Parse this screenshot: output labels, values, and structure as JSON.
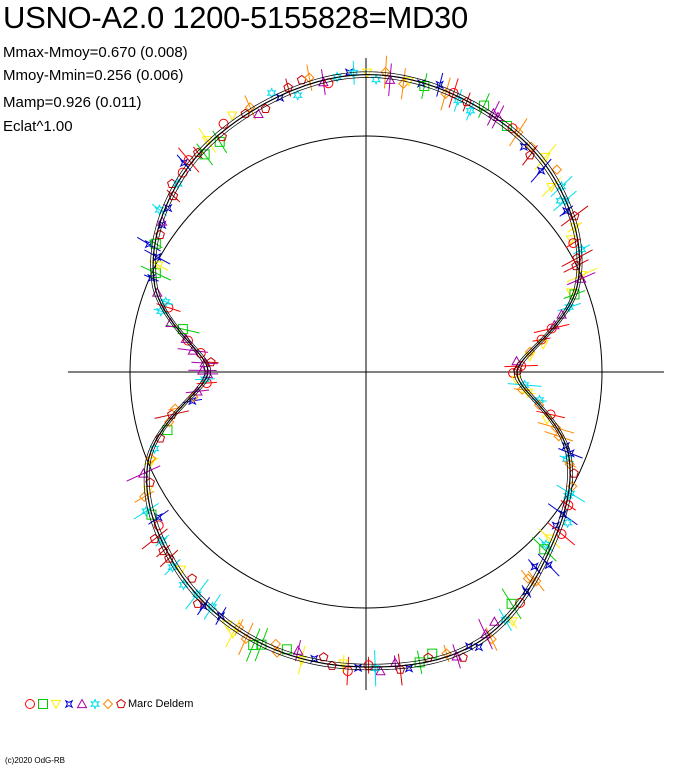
{
  "title": "USNO-A2.0 1200-5155828=MD30",
  "stats": {
    "line1": "Mmax-Mmoy=0.670 (0.008)",
    "line2": "Mmoy-Mmin=0.256 (0.006)",
    "line3": "Mamp=0.926 (0.011)",
    "line4": "Eclat^1.00"
  },
  "legend": {
    "observer": "Marc Deldem"
  },
  "footer": {
    "copyright": "(c)2020 OdG-RB"
  },
  "colors": {
    "axes": "#000000",
    "curve": "#000000",
    "series": [
      "#ff0000",
      "#00cc00",
      "#ffee00",
      "#0000cc",
      "#aa00aa",
      "#00ddee",
      "#ff8800",
      "#cc0000"
    ]
  },
  "chart_data": {
    "type": "scatter",
    "coordinate_system": "polar",
    "description_type": "polar phase diagram of normalized brightness",
    "mmax_mmoy": 0.67,
    "mmax_mmoy_err": 0.008,
    "mmoy_mmin": 0.256,
    "mmoy_mmin_err": 0.006,
    "mamp": 0.926,
    "mamp_err": 0.011,
    "flux_exponent": 1.0,
    "reference_circle_radius": 1.0,
    "r_max": 1.26,
    "model_curve": {
      "phase": [
        0,
        0.0625,
        0.125,
        0.1875,
        0.25,
        0.3125,
        0.375,
        0.4375,
        0.5,
        0.5625,
        0.625,
        0.6875,
        0.75,
        0.8125,
        0.875,
        0.9375
      ],
      "r": [
        1.26,
        1.22,
        1.14,
        0.97,
        0.64,
        0.93,
        1.09,
        1.24,
        1.25,
        1.23,
        1.15,
        1.0,
        0.67,
        0.97,
        1.13,
        1.21
      ]
    },
    "series": [
      {
        "marker": "circle",
        "color": "#ff0000"
      },
      {
        "marker": "square",
        "color": "#00cc00"
      },
      {
        "marker": "triangle-down",
        "color": "#ffee00"
      },
      {
        "marker": "star4",
        "color": "#0000cc"
      },
      {
        "marker": "triangle-up",
        "color": "#aa00aa"
      },
      {
        "marker": "star6",
        "color": "#00ddee"
      },
      {
        "marker": "diamond",
        "color": "#ff8800"
      },
      {
        "marker": "pentagon",
        "color": "#cc0000"
      }
    ]
  }
}
